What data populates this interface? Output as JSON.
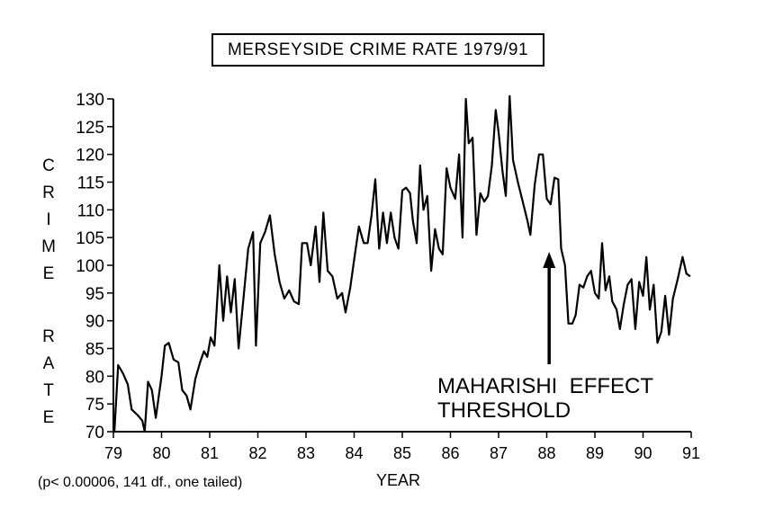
{
  "chart_data": {
    "type": "line",
    "title": "MERSEYSIDE CRIME RATE 1979/91",
    "ylabel": "CRIME RATE",
    "ylabel_letters": [
      "C",
      "R",
      "I",
      "M",
      "E",
      "",
      "R",
      "A",
      "T",
      "E"
    ],
    "xlabel": "YEAR",
    "footnote": "(p< 0.00006, 141 df., one tailed)",
    "annotation": [
      "MAHARISHI  EFFECT",
      "THRESHOLD"
    ],
    "annotation_arrow_x": 88.05,
    "ylim": [
      70,
      130
    ],
    "xlim": [
      79,
      91
    ],
    "y_ticks": [
      "70",
      "75",
      "80",
      "85",
      "90",
      "95",
      "100",
      "105",
      "110",
      "115",
      "120",
      "125",
      "130"
    ],
    "x_ticks": [
      "79",
      "80",
      "81",
      "82",
      "83",
      "84",
      "85",
      "86",
      "87",
      "88",
      "89",
      "90",
      "91"
    ],
    "grid": false,
    "series": [
      {
        "values": [
          [
            79.02,
            70
          ],
          [
            79.1,
            82
          ],
          [
            79.2,
            80.5
          ],
          [
            79.3,
            78.5
          ],
          [
            79.38,
            74
          ],
          [
            79.5,
            73
          ],
          [
            79.6,
            72
          ],
          [
            79.65,
            70
          ],
          [
            79.72,
            79
          ],
          [
            79.8,
            77.5
          ],
          [
            79.88,
            72.5
          ],
          [
            80.0,
            80
          ],
          [
            80.07,
            85.5
          ],
          [
            80.15,
            86
          ],
          [
            80.25,
            83
          ],
          [
            80.35,
            82.5
          ],
          [
            80.43,
            77.5
          ],
          [
            80.52,
            76.5
          ],
          [
            80.6,
            74
          ],
          [
            80.7,
            79.5
          ],
          [
            80.8,
            82.5
          ],
          [
            80.88,
            84.5
          ],
          [
            80.95,
            83.5
          ],
          [
            81.02,
            87
          ],
          [
            81.1,
            85.5
          ],
          [
            81.2,
            100
          ],
          [
            81.28,
            90
          ],
          [
            81.36,
            98
          ],
          [
            81.44,
            91.5
          ],
          [
            81.52,
            97.5
          ],
          [
            81.6,
            85
          ],
          [
            81.7,
            94
          ],
          [
            81.8,
            103
          ],
          [
            81.9,
            106
          ],
          [
            81.96,
            85.5
          ],
          [
            82.05,
            104
          ],
          [
            82.15,
            106
          ],
          [
            82.25,
            109
          ],
          [
            82.35,
            102
          ],
          [
            82.45,
            97
          ],
          [
            82.55,
            94
          ],
          [
            82.65,
            95.5
          ],
          [
            82.75,
            93.5
          ],
          [
            82.85,
            93
          ],
          [
            82.92,
            104
          ],
          [
            83.02,
            104
          ],
          [
            83.1,
            100
          ],
          [
            83.2,
            107
          ],
          [
            83.28,
            97
          ],
          [
            83.36,
            109.5
          ],
          [
            83.45,
            99
          ],
          [
            83.55,
            98
          ],
          [
            83.65,
            94
          ],
          [
            83.75,
            95
          ],
          [
            83.82,
            91.5
          ],
          [
            83.92,
            96
          ],
          [
            84.0,
            101
          ],
          [
            84.1,
            107
          ],
          [
            84.2,
            104
          ],
          [
            84.28,
            104
          ],
          [
            84.36,
            109
          ],
          [
            84.44,
            115.5
          ],
          [
            84.52,
            103
          ],
          [
            84.6,
            109.5
          ],
          [
            84.68,
            104
          ],
          [
            84.76,
            109.5
          ],
          [
            84.84,
            105
          ],
          [
            84.92,
            103
          ],
          [
            85.0,
            113.5
          ],
          [
            85.08,
            114
          ],
          [
            85.16,
            113
          ],
          [
            85.22,
            108
          ],
          [
            85.3,
            104
          ],
          [
            85.37,
            118
          ],
          [
            85.44,
            110
          ],
          [
            85.52,
            112.5
          ],
          [
            85.6,
            99
          ],
          [
            85.68,
            106.5
          ],
          [
            85.76,
            103
          ],
          [
            85.84,
            102
          ],
          [
            85.92,
            117.5
          ],
          [
            86.0,
            114
          ],
          [
            86.1,
            112
          ],
          [
            86.18,
            120
          ],
          [
            86.25,
            105
          ],
          [
            86.32,
            130
          ],
          [
            86.38,
            122
          ],
          [
            86.46,
            123
          ],
          [
            86.54,
            105.5
          ],
          [
            86.62,
            113
          ],
          [
            86.7,
            111.5
          ],
          [
            86.78,
            112.5
          ],
          [
            86.86,
            118
          ],
          [
            86.94,
            128
          ],
          [
            87.0,
            124
          ],
          [
            87.08,
            117
          ],
          [
            87.15,
            112.5
          ],
          [
            87.23,
            130.5
          ],
          [
            87.3,
            119
          ],
          [
            87.4,
            115
          ],
          [
            87.5,
            111.5
          ],
          [
            87.6,
            108
          ],
          [
            87.66,
            105.5
          ],
          [
            87.75,
            114.5
          ],
          [
            87.84,
            120
          ],
          [
            87.92,
            120
          ],
          [
            88.0,
            112
          ],
          [
            88.08,
            111
          ],
          [
            88.16,
            115.8
          ],
          [
            88.24,
            115.5
          ],
          [
            88.3,
            103
          ],
          [
            88.38,
            100
          ],
          [
            88.45,
            89.5
          ],
          [
            88.53,
            89.5
          ],
          [
            88.6,
            91
          ],
          [
            88.68,
            96.5
          ],
          [
            88.76,
            96
          ],
          [
            88.84,
            98
          ],
          [
            88.92,
            99
          ],
          [
            89.0,
            95
          ],
          [
            89.08,
            94
          ],
          [
            89.15,
            104
          ],
          [
            89.22,
            95.5
          ],
          [
            89.3,
            98
          ],
          [
            89.36,
            93.5
          ],
          [
            89.45,
            92
          ],
          [
            89.52,
            88.5
          ],
          [
            89.6,
            93
          ],
          [
            89.68,
            96.5
          ],
          [
            89.76,
            97.5
          ],
          [
            89.84,
            88.5
          ],
          [
            89.92,
            97
          ],
          [
            90.0,
            94.5
          ],
          [
            90.07,
            101.5
          ],
          [
            90.14,
            92
          ],
          [
            90.22,
            96.5
          ],
          [
            90.3,
            86
          ],
          [
            90.38,
            88
          ],
          [
            90.46,
            94.5
          ],
          [
            90.54,
            87.5
          ],
          [
            90.62,
            94
          ],
          [
            90.72,
            97.5
          ],
          [
            90.82,
            101.5
          ],
          [
            90.9,
            98.5
          ],
          [
            90.98,
            98
          ]
        ]
      }
    ]
  }
}
